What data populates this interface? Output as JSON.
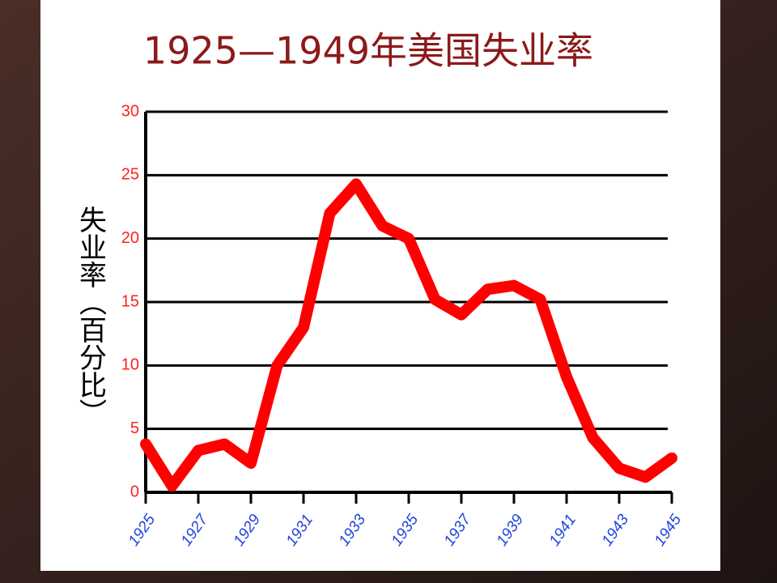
{
  "chart_data": {
    "type": "line",
    "title": "1925—1949年美国失业率",
    "y_label": "失业率（百分比）",
    "x": [
      1925,
      1926,
      1927,
      1928,
      1929,
      1930,
      1931,
      1932,
      1933,
      1934,
      1935,
      1936,
      1937,
      1938,
      1939,
      1940,
      1941,
      1942,
      1943,
      1944,
      1945
    ],
    "series": [
      {
        "name": "失业率",
        "color": "#ff0000",
        "values": [
          3.8,
          0.5,
          3.3,
          3.8,
          2.3,
          10,
          13,
          22,
          24.3,
          21,
          20,
          15.2,
          14,
          16,
          16.3,
          15.2,
          9.1,
          4.3,
          1.9,
          1.2,
          2.7
        ]
      }
    ],
    "xlim": [
      1925,
      1945
    ],
    "xticks": [
      1925,
      1927,
      1929,
      1931,
      1933,
      1935,
      1937,
      1939,
      1941,
      1943,
      1945
    ],
    "ylim": [
      0,
      30
    ],
    "yticks": [
      0,
      5,
      10,
      15,
      20,
      25,
      30
    ],
    "grid": true
  }
}
